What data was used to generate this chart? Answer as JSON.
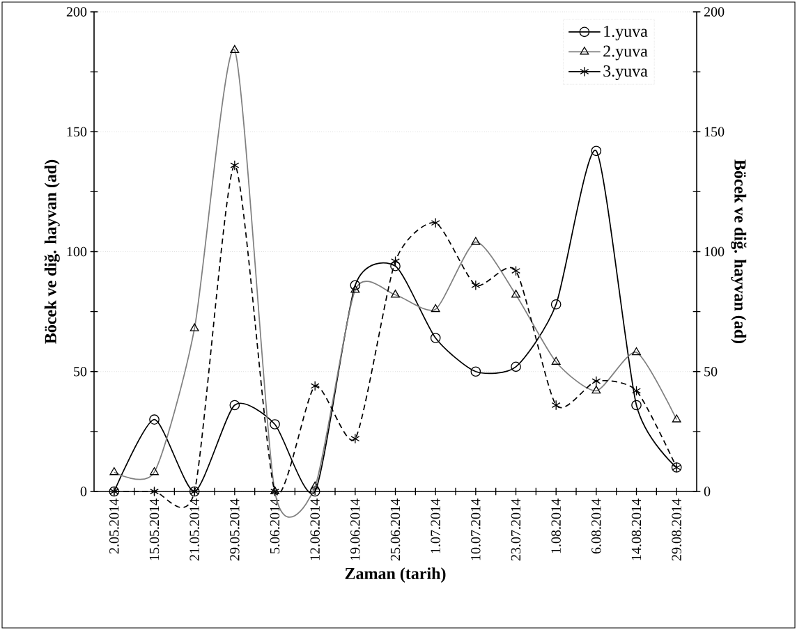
{
  "chart_data": {
    "type": "line",
    "xlabel": "Zaman  (tarih)",
    "ylabel": "Böcek ve diğ. hayvan  (ad)",
    "y2label": "Böcek ve diğ. hayvan  (ad)",
    "categories": [
      "2.05.2014",
      "15.05.2014",
      "21.05.2014",
      "29.05.2014",
      "5.06.2014",
      "12.06.2014",
      "19.06.2014",
      "25.06.2014",
      "1.07.2014",
      "10.07.2014",
      "23.07.2014",
      "1.08.2014",
      "6.08.2014",
      "14.08.2014",
      "29.08.2014"
    ],
    "series": [
      {
        "name": "1.yuva",
        "color": "#000000",
        "marker": "circle",
        "line_style": "solid",
        "values": [
          0,
          30,
          0,
          36,
          28,
          0,
          86,
          94,
          64,
          50,
          52,
          78,
          142,
          36,
          10
        ]
      },
      {
        "name": "2.yuva",
        "color": "#808080",
        "marker": "triangle",
        "line_style": "solid",
        "values": [
          8,
          8,
          68,
          184,
          0,
          2,
          84,
          82,
          76,
          104,
          82,
          54,
          42,
          58,
          30
        ]
      },
      {
        "name": "3.yuva",
        "color": "#000000",
        "marker": "cross",
        "line_style": "dashed",
        "values": [
          0,
          0,
          0,
          136,
          0,
          44,
          22,
          96,
          112,
          86,
          92,
          36,
          46,
          42,
          10
        ]
      }
    ],
    "ylim": [
      0,
      200
    ],
    "yticks": [
      0,
      50,
      100,
      150,
      200
    ],
    "y2lim": [
      0,
      200
    ],
    "y2ticks": [
      0,
      50,
      100,
      150,
      200
    ],
    "grid": "y",
    "legend": "top right"
  }
}
